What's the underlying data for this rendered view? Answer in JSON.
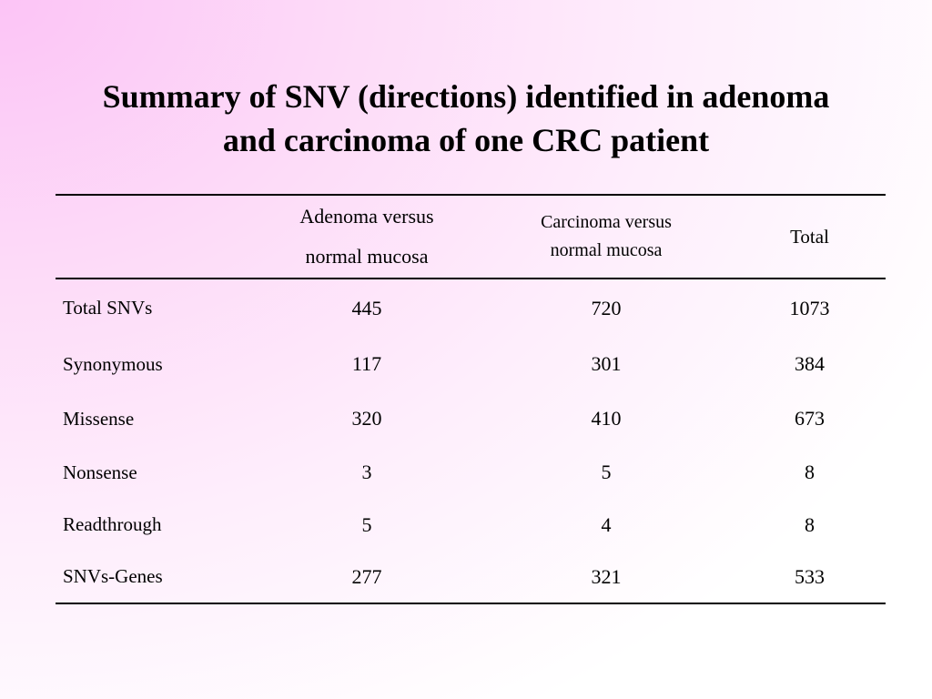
{
  "slide": {
    "title_line1": "Summary of SNV (directions) identified in adenoma",
    "title_line2": "and carcinoma of one CRC patient"
  },
  "table": {
    "columns": [
      {
        "line1": "",
        "line2": ""
      },
      {
        "line1": "Adenoma versus",
        "line2": "normal mucosa"
      },
      {
        "line1": "Carcinoma versus",
        "line2": "normal mucosa"
      },
      {
        "line1": "Total",
        "line2": ""
      }
    ],
    "rows": [
      {
        "label": "Total SNVs",
        "adenoma": "445",
        "carcinoma": "720",
        "total": "1073"
      },
      {
        "label": "Synonymous",
        "adenoma": "117",
        "carcinoma": "301",
        "total": "384"
      },
      {
        "label": "Missense",
        "adenoma": "320",
        "carcinoma": "410",
        "total": "673"
      },
      {
        "label": "Nonsense",
        "adenoma": "3",
        "carcinoma": "5",
        "total": "8"
      },
      {
        "label": "Readthrough",
        "adenoma": "5",
        "carcinoma": "4",
        "total": "8"
      },
      {
        "label": "SNVs-Genes",
        "adenoma": "277",
        "carcinoma": "321",
        "total": "533"
      }
    ]
  }
}
